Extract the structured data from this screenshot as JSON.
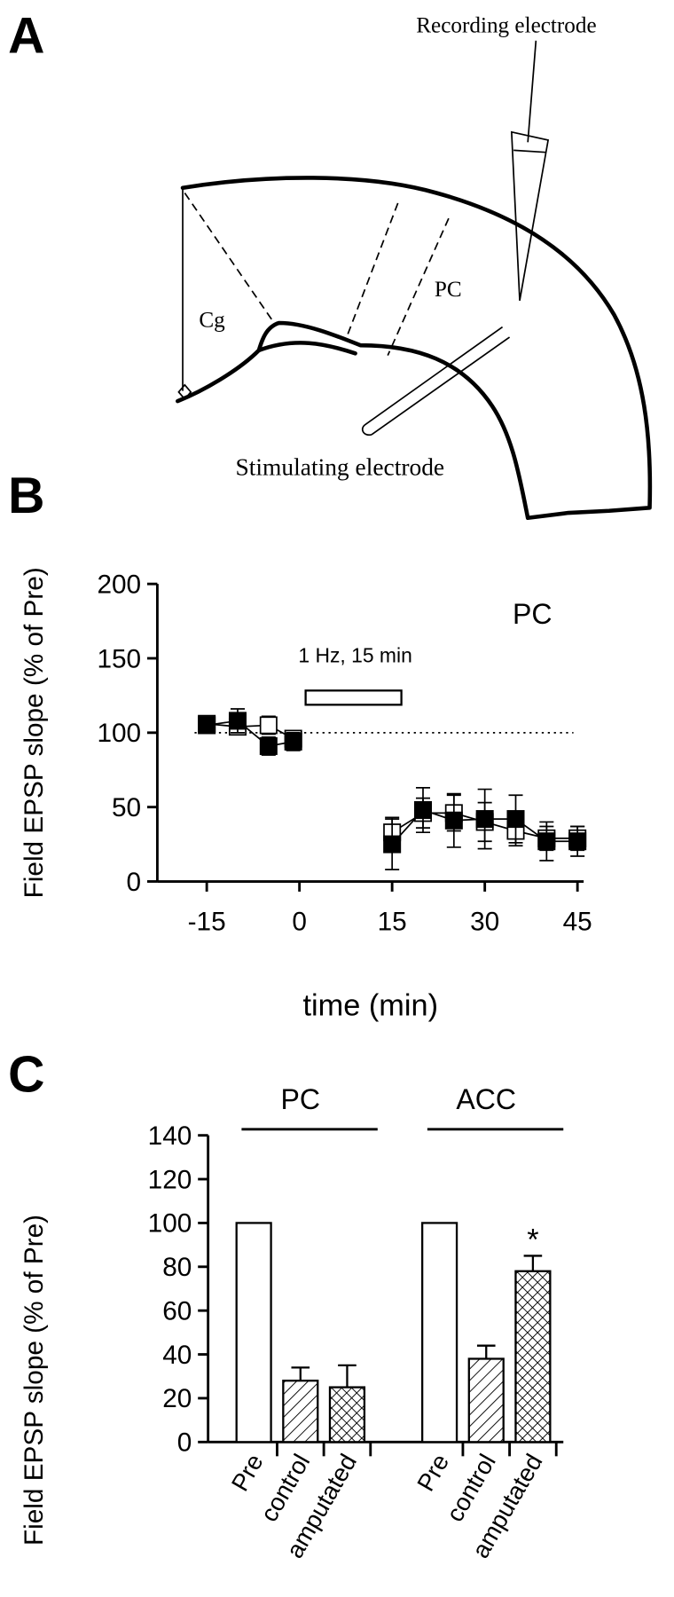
{
  "panel_a": {
    "label": "A",
    "recording_electrode": "Recording electrode",
    "region_cg": "Cg",
    "region_pc": "PC",
    "stimulating_electrode": "Stimulating electrode"
  },
  "chart_data": [
    {
      "panel_label": "B",
      "type": "line",
      "ylabel": "Field EPSP slope (% of Pre)",
      "xlabel": "time (min)",
      "annotation": "PC",
      "stimulus_label": "1 Hz, 15 min",
      "stimulus": [
        1,
        16.5
      ],
      "reference_line": 100,
      "xlim": [
        -23,
        46
      ],
      "xticks": [
        -15,
        0,
        15,
        30,
        45
      ],
      "ylim": [
        0,
        200
      ],
      "yticks": [
        0,
        50,
        100,
        150,
        200
      ],
      "series": [
        {
          "marker": "open",
          "color": "#000000",
          "x": [
            -15,
            -10,
            -5,
            -1,
            15,
            20,
            25,
            30,
            35,
            40,
            45
          ],
          "values": [
            106,
            104,
            105,
            96,
            33,
            46,
            46,
            40,
            34,
            29,
            29
          ],
          "errors": [
            5,
            5,
            6,
            5,
            10,
            10,
            12,
            13,
            10,
            8,
            8
          ]
        },
        {
          "marker": "filled",
          "color": "#000000",
          "x": [
            -15,
            -10,
            -5,
            -1,
            15,
            20,
            25,
            30,
            35,
            40,
            45
          ],
          "values": [
            105,
            108,
            91,
            94,
            25,
            48,
            41,
            42,
            42,
            27,
            27
          ],
          "errors": [
            5,
            8,
            6,
            6,
            17,
            15,
            18,
            20,
            16,
            13,
            10
          ]
        }
      ]
    },
    {
      "panel_label": "C",
      "type": "bar",
      "ylabel": "Field EPSP slope (% of Pre)",
      "categories": [
        "Pre",
        "control",
        "amputated"
      ],
      "fills": [
        "none",
        "hatch",
        "crosshatch"
      ],
      "ylim": [
        0,
        140
      ],
      "yticks": [
        0,
        20,
        40,
        60,
        80,
        100,
        120,
        140
      ],
      "series": [
        {
          "name": "PC",
          "values": [
            100,
            28,
            25
          ],
          "errors": [
            null,
            6,
            10
          ]
        },
        {
          "name": "ACC",
          "values": [
            100,
            38,
            78
          ],
          "errors": [
            null,
            6,
            7
          ]
        }
      ],
      "significance_label": "*"
    }
  ]
}
